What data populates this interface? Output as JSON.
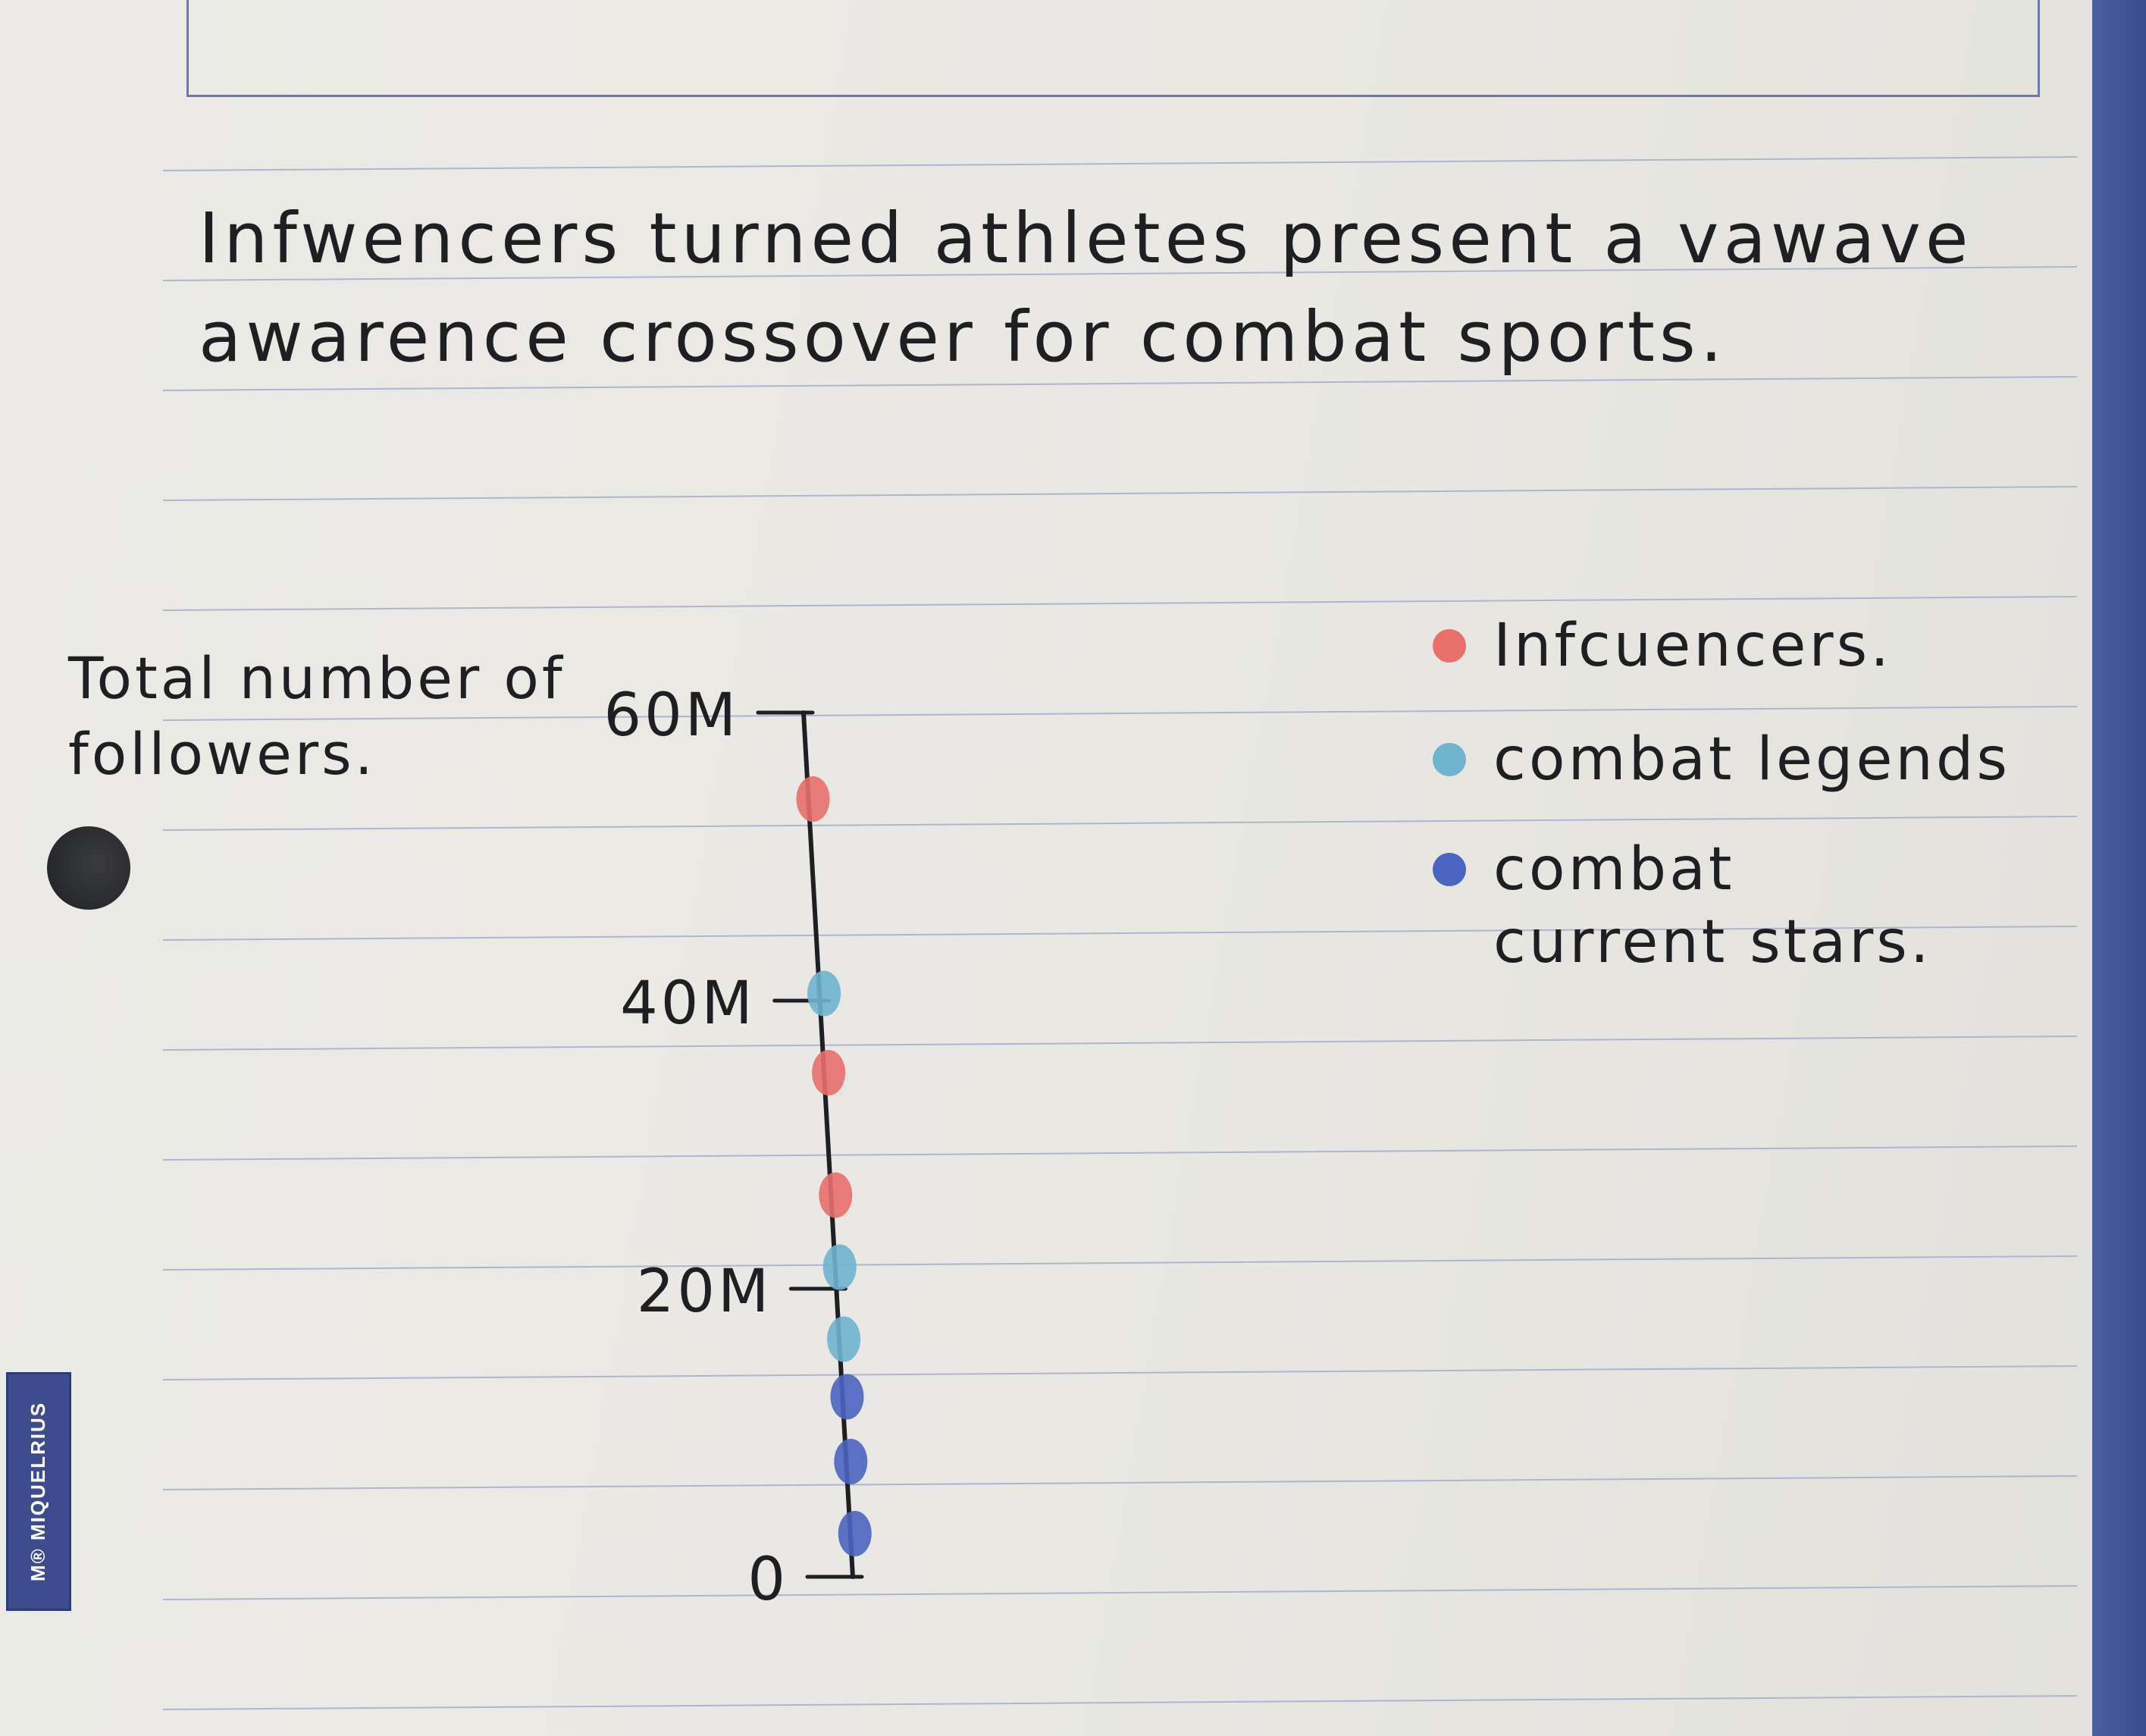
{
  "page": {
    "brand": "M® MIQUELRIUS"
  },
  "colors": {
    "paper": "#e9e8e3",
    "rule": "#aeb6cf",
    "ink": "#1f1f23",
    "influencers": "#e86f6c",
    "combat_legends": "#6fb3cf",
    "combat_current_stars": "#4a64c0"
  },
  "chart_data": {
    "type": "scatter",
    "title": "Infwencers turned athletes present a vawave awarence crossover for combat sports.",
    "ylabel": "Total number of followers.",
    "xlabel": "",
    "ylim": [
      0,
      60
    ],
    "y_unit": "M",
    "y_ticks": [
      {
        "value": 0,
        "label": "0"
      },
      {
        "value": 20,
        "label": "20M"
      },
      {
        "value": 40,
        "label": "40M"
      },
      {
        "value": 60,
        "label": "60M"
      }
    ],
    "legend_position": "top-right",
    "grid": false,
    "series": [
      {
        "name": "Infcuencers.",
        "color": "#e86f6c",
        "values": [
          54,
          35,
          26.5
        ]
      },
      {
        "name": "combat legends",
        "color": "#6fb3cf",
        "values": [
          40.5,
          21.5,
          16.5
        ]
      },
      {
        "name": "combat current stars.",
        "color": "#4a64c0",
        "values": [
          12.5,
          8,
          3
        ]
      }
    ]
  }
}
